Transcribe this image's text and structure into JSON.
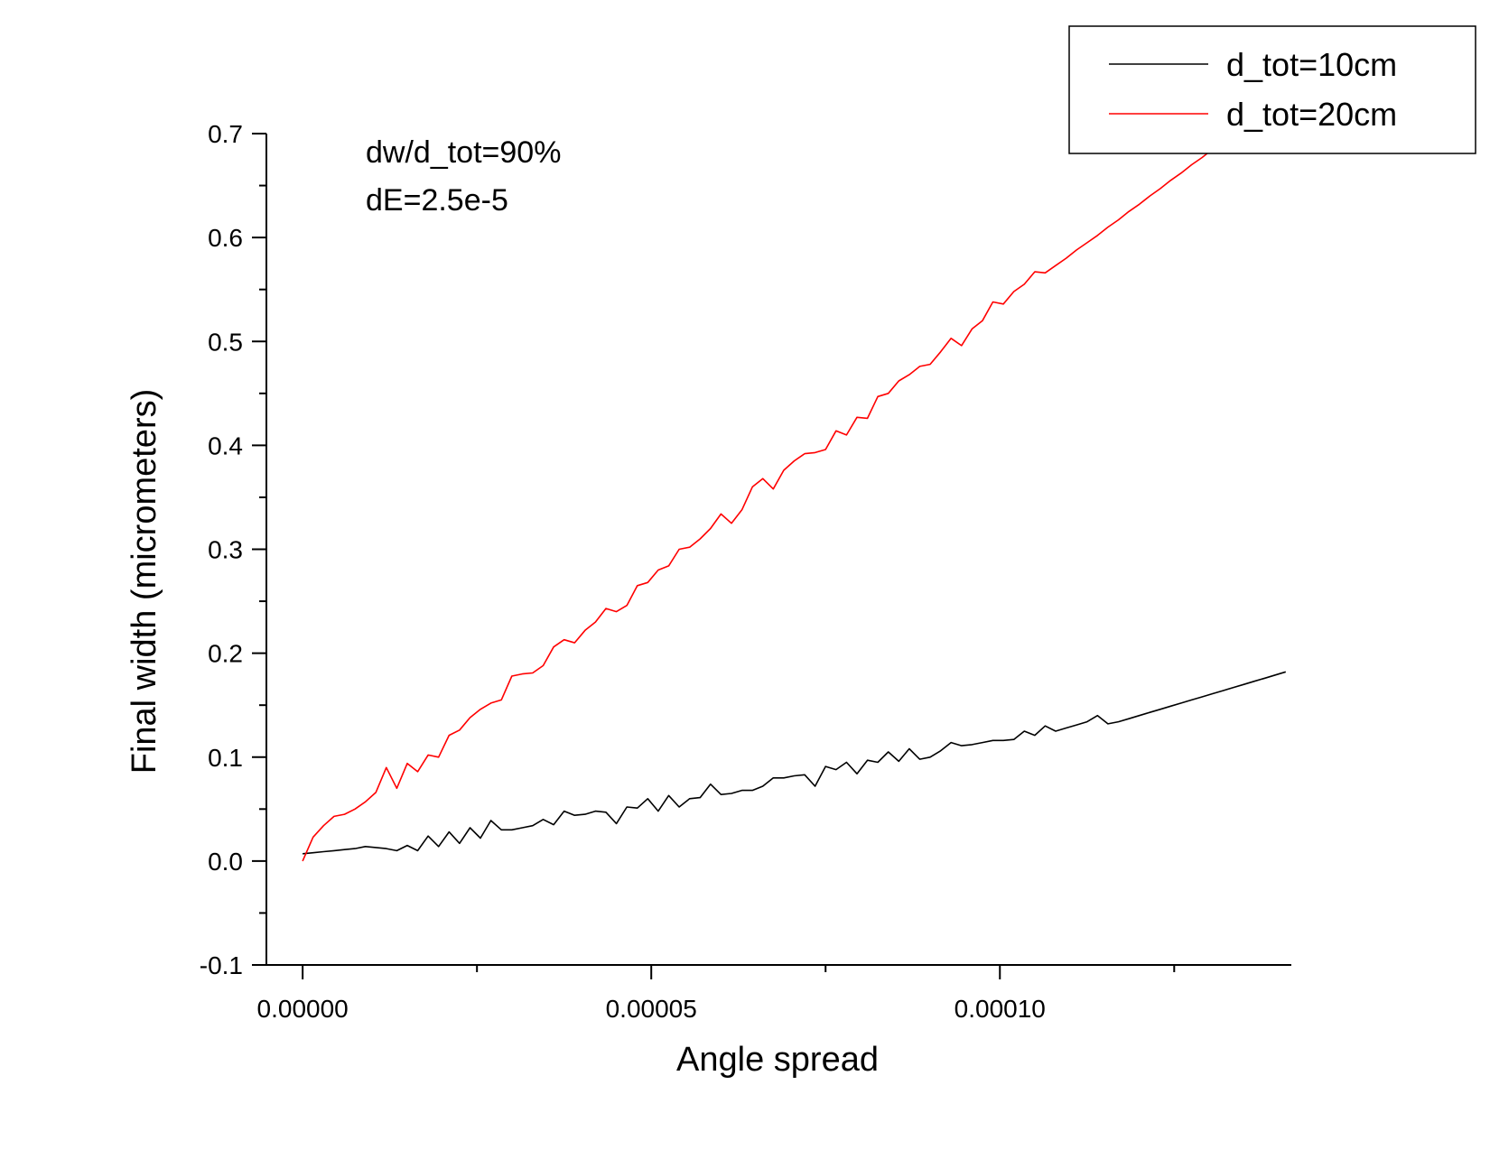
{
  "chart_data": {
    "type": "line",
    "xlabel": "Angle spread",
    "ylabel": "Final width (micrometers)",
    "xlim": [
      -5.2e-06,
      0.0001418
    ],
    "ylim": [
      -0.1,
      0.7
    ],
    "x_major_ticks": [
      0.0,
      5e-05,
      0.0001
    ],
    "x_tick_labels": [
      "0.00000",
      "0.00005",
      "0.00010"
    ],
    "y_major_ticks": [
      -0.1,
      0.0,
      0.1,
      0.2,
      0.3,
      0.4,
      0.5,
      0.6,
      0.7
    ],
    "y_tick_labels": [
      "-0.1",
      "0.0",
      "0.1",
      "0.2",
      "0.3",
      "0.4",
      "0.5",
      "0.6",
      "0.7"
    ],
    "annotations": [
      "dw/d_tot=90%",
      "dE=2.5e-5"
    ],
    "legend_position": "top-right",
    "grid": false,
    "series": [
      {
        "name": "d_tot=10cm",
        "color": "#000000",
        "x": [
          0.0,
          1.5e-06,
          3e-06,
          4.5e-06,
          6e-06,
          7.5e-06,
          9e-06,
          1.05e-05,
          1.2e-05,
          1.35e-05,
          1.5e-05,
          1.65e-05,
          1.8e-05,
          1.95e-05,
          2.1e-05,
          2.25e-05,
          2.4e-05,
          2.55e-05,
          2.7e-05,
          2.85e-05,
          3e-05,
          3.15e-05,
          3.3e-05,
          3.45e-05,
          3.6e-05,
          3.75e-05,
          3.9e-05,
          4.05e-05,
          4.2e-05,
          4.35e-05,
          4.5e-05,
          4.65e-05,
          4.8e-05,
          4.95e-05,
          5.1e-05,
          5.25e-05,
          5.4e-05,
          5.55e-05,
          5.7e-05,
          5.85e-05,
          6e-05,
          6.15e-05,
          6.3e-05,
          6.45e-05,
          6.6e-05,
          6.75e-05,
          6.9e-05,
          7.05e-05,
          7.2e-05,
          7.35e-05,
          7.5e-05,
          7.65e-05,
          7.8e-05,
          7.95e-05,
          8.1e-05,
          8.25e-05,
          8.4e-05,
          8.55e-05,
          8.7e-05,
          8.85e-05,
          9e-05,
          9.15e-05,
          9.3e-05,
          9.45e-05,
          9.6e-05,
          9.75e-05,
          9.9e-05,
          0.0001005,
          0.000102,
          0.0001035,
          0.000105,
          0.0001065,
          0.000108,
          0.0001095,
          0.000111,
          0.0001125,
          0.000114,
          0.0001155,
          0.000117,
          0.0001185,
          0.00012,
          0.0001215,
          0.000123,
          0.0001245,
          0.000126,
          0.0001275,
          0.000129,
          0.0001305,
          0.000132,
          0.0001335,
          0.000135,
          0.0001365,
          0.000138,
          0.0001395,
          0.000141
        ],
        "y": [
          0.007,
          0.008,
          0.009,
          0.01,
          0.011,
          0.012,
          0.014,
          0.013,
          0.012,
          0.01,
          0.015,
          0.01,
          0.024,
          0.014,
          0.028,
          0.017,
          0.032,
          0.022,
          0.039,
          0.03,
          0.03,
          0.032,
          0.034,
          0.04,
          0.035,
          0.048,
          0.044,
          0.045,
          0.048,
          0.047,
          0.036,
          0.052,
          0.051,
          0.06,
          0.048,
          0.063,
          0.052,
          0.06,
          0.061,
          0.074,
          0.064,
          0.065,
          0.068,
          0.068,
          0.072,
          0.08,
          0.08,
          0.082,
          0.083,
          0.072,
          0.091,
          0.088,
          0.095,
          0.084,
          0.097,
          0.095,
          0.105,
          0.096,
          0.108,
          0.098,
          0.1,
          0.106,
          0.114,
          0.111,
          0.112,
          0.114,
          0.116,
          0.116,
          0.117,
          0.125,
          0.121,
          0.13,
          0.125,
          0.128,
          0.131,
          0.134,
          0.14,
          0.132,
          0.134,
          0.137,
          0.14,
          0.143,
          0.146,
          0.149,
          0.152,
          0.155,
          0.158,
          0.161,
          0.164,
          0.167,
          0.17,
          0.173,
          0.176,
          0.179,
          0.182
        ]
      },
      {
        "name": "d_tot=20cm",
        "color": "#ff0000",
        "x": [
          0.0,
          1.5e-06,
          3e-06,
          4.5e-06,
          6e-06,
          7.5e-06,
          9e-06,
          1.05e-05,
          1.2e-05,
          1.35e-05,
          1.5e-05,
          1.65e-05,
          1.8e-05,
          1.95e-05,
          2.1e-05,
          2.25e-05,
          2.4e-05,
          2.55e-05,
          2.7e-05,
          2.85e-05,
          3e-05,
          3.15e-05,
          3.3e-05,
          3.45e-05,
          3.6e-05,
          3.75e-05,
          3.9e-05,
          4.05e-05,
          4.2e-05,
          4.35e-05,
          4.5e-05,
          4.65e-05,
          4.8e-05,
          4.95e-05,
          5.1e-05,
          5.25e-05,
          5.4e-05,
          5.55e-05,
          5.7e-05,
          5.85e-05,
          6e-05,
          6.15e-05,
          6.3e-05,
          6.45e-05,
          6.6e-05,
          6.75e-05,
          6.9e-05,
          7.05e-05,
          7.2e-05,
          7.35e-05,
          7.5e-05,
          7.65e-05,
          7.8e-05,
          7.95e-05,
          8.1e-05,
          8.25e-05,
          8.4e-05,
          8.55e-05,
          8.7e-05,
          8.85e-05,
          9e-05,
          9.15e-05,
          9.3e-05,
          9.45e-05,
          9.6e-05,
          9.75e-05,
          9.9e-05,
          0.0001005,
          0.000102,
          0.0001035,
          0.000105,
          0.0001065,
          0.000108,
          0.0001095,
          0.000111,
          0.0001125,
          0.000114,
          0.0001155,
          0.000117,
          0.0001185,
          0.00012,
          0.0001215,
          0.000123,
          0.0001245,
          0.000126,
          0.0001275,
          0.000129,
          0.0001305,
          0.000132,
          0.0001335,
          0.000135,
          0.0001365,
          0.000138,
          0.0001395,
          0.000141
        ],
        "y": [
          0.0,
          0.023,
          0.034,
          0.043,
          0.045,
          0.05,
          0.057,
          0.066,
          0.09,
          0.07,
          0.094,
          0.086,
          0.102,
          0.1,
          0.121,
          0.126,
          0.138,
          0.146,
          0.152,
          0.155,
          0.178,
          0.18,
          0.181,
          0.188,
          0.206,
          0.213,
          0.21,
          0.222,
          0.23,
          0.243,
          0.24,
          0.246,
          0.265,
          0.268,
          0.28,
          0.284,
          0.3,
          0.302,
          0.31,
          0.32,
          0.334,
          0.325,
          0.338,
          0.36,
          0.368,
          0.358,
          0.376,
          0.385,
          0.392,
          0.393,
          0.396,
          0.414,
          0.41,
          0.427,
          0.426,
          0.447,
          0.45,
          0.462,
          0.468,
          0.476,
          0.478,
          0.49,
          0.503,
          0.496,
          0.512,
          0.52,
          0.538,
          0.536,
          0.548,
          0.555,
          0.567,
          0.566,
          0.573,
          0.58,
          0.588,
          0.595,
          0.602,
          0.61,
          0.617,
          0.625,
          0.632,
          0.64,
          0.647,
          0.655,
          0.662,
          0.67,
          0.677,
          0.685,
          0.692,
          0.7,
          0.707,
          0.715,
          0.722,
          0.73,
          0.737
        ]
      }
    ]
  }
}
